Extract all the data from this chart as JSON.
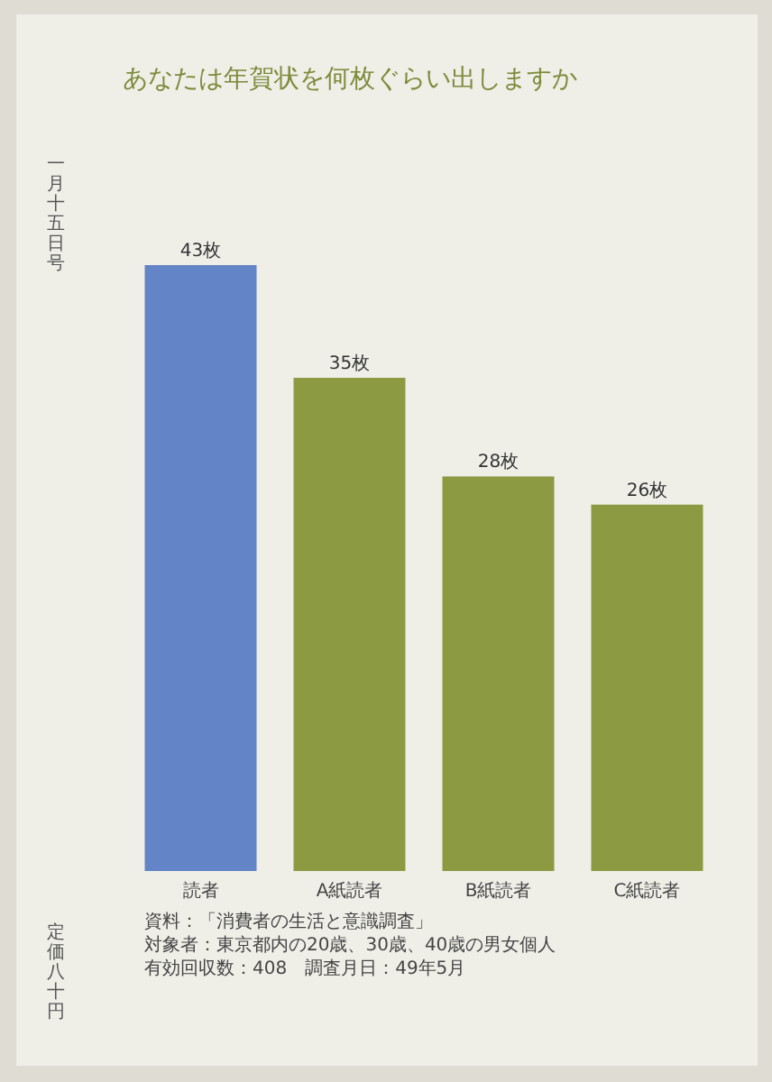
{
  "chart_data": {
    "type": "bar",
    "title": "あなたは年賀状を何枚ぐらい出しますか",
    "categories": [
      "読者",
      "A紙読者",
      "B紙読者",
      "C紙読者"
    ],
    "values": [
      43,
      35,
      28,
      26
    ],
    "colors": [
      "#6384c6",
      "#8c9b42",
      "#8c9b42",
      "#8c9b42"
    ],
    "value_labels": [
      "43枚",
      "35枚",
      "28枚",
      "26枚"
    ],
    "annotations": [
      "資料：「消費者の生活と意識調査」",
      "対象者：東京都内の20歳、30歳、40歳の男女個人",
      "有効回収数：408　調査月日：49年5月",
      "一月十五日号",
      "定価八十円"
    ]
  }
}
